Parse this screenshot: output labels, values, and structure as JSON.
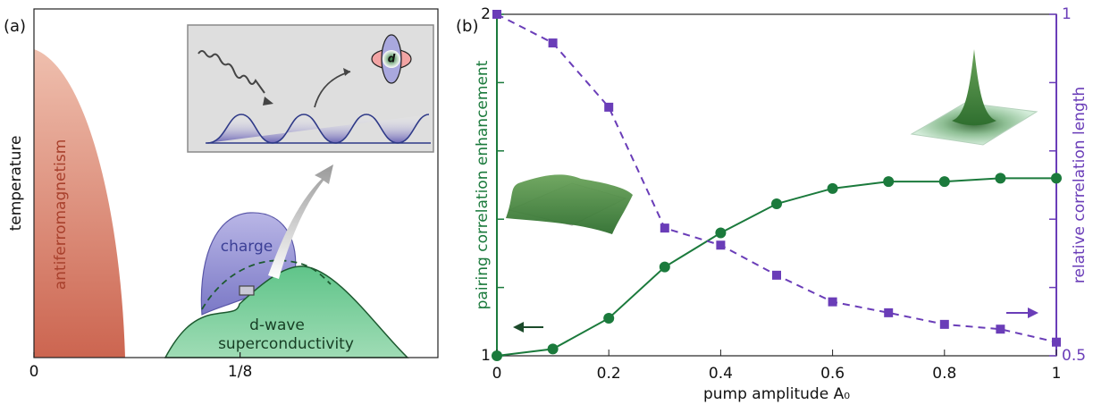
{
  "chart_data": [
    {
      "type": "diagram",
      "label": "(a)",
      "ylabel": "temperature",
      "xlim": [
        0,
        0.245
      ],
      "xticks": [
        {
          "value": 0,
          "label": "0"
        },
        {
          "value": 0.125,
          "label": "1/8"
        }
      ],
      "regions": [
        "antiferromagnetism",
        "charge"
      ],
      "sc_label": [
        "d-wave",
        "superconductivity"
      ],
      "orbital_label": "d"
    },
    {
      "type": "line",
      "label": "(b)",
      "xlabel": "pump amplitude A₀",
      "ylabel": "pairing correlation enhancement",
      "y2label": "relative correlation length",
      "x": [
        0,
        0.1,
        0.2,
        0.3,
        0.4,
        0.5,
        0.6,
        0.7,
        0.8,
        0.9,
        1
      ],
      "xlim": [
        0,
        1
      ],
      "xticks": [
        0,
        0.2,
        0.4,
        0.6,
        0.8,
        1
      ],
      "ylim": [
        1,
        2
      ],
      "yticks": [
        1,
        2
      ],
      "yminorticks": [
        1.2,
        1.4,
        1.6,
        1.8
      ],
      "y2lim": [
        0.5,
        1
      ],
      "y2ticks": [
        0.5,
        1
      ],
      "y2minorticks": [
        0.6,
        0.7,
        0.8,
        0.9
      ],
      "series": [
        {
          "color": "#1b7a3c",
          "marker": "circle",
          "dashed": false,
          "values": [
            1.0,
            1.02,
            1.11,
            1.26,
            1.36,
            1.445,
            1.49,
            1.51,
            1.51,
            1.52,
            1.52
          ]
        },
        {
          "color": "#6a3db8",
          "marker": "square",
          "dashed": true,
          "axis": "y2",
          "values": [
            1.0,
            0.958,
            0.864,
            0.687,
            0.662,
            0.618,
            0.579,
            0.563,
            0.546,
            0.539,
            0.52
          ]
        }
      ]
    }
  ]
}
